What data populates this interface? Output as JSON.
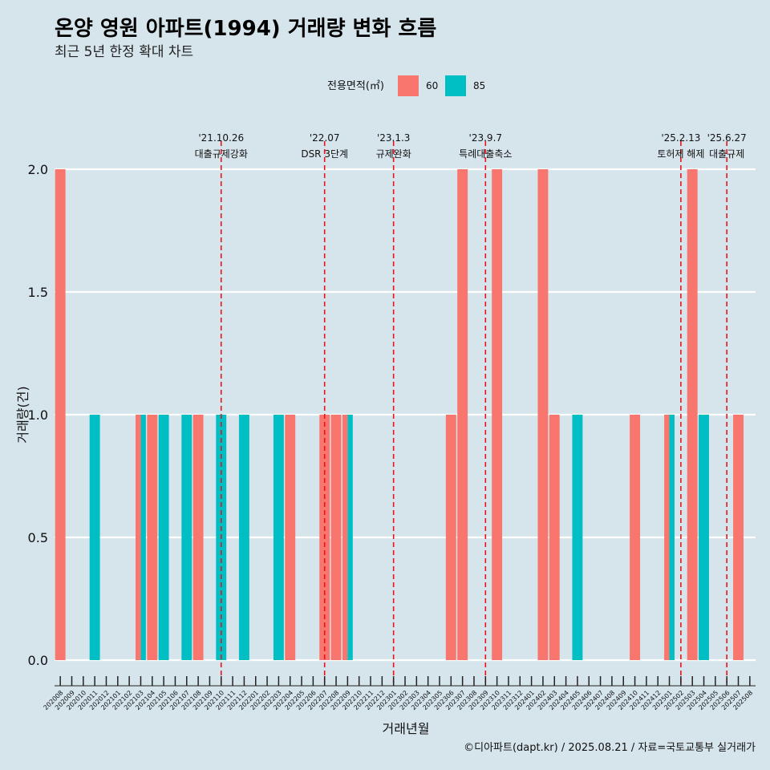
{
  "chart_data": {
    "type": "bar",
    "title": "온양 영원 아파트(1994) 거래량 변화 흐름",
    "subtitle": "최근 5년 한정 확대 차트",
    "xlabel": "거래년월",
    "ylabel": "거래량(건)",
    "ylim": [
      0,
      2.0
    ],
    "yticks": [
      "0.0",
      "0.5",
      "1.0",
      "1.5",
      "2.0"
    ],
    "grid": true,
    "legend": {
      "title": "전용면적(㎡)",
      "position": "top"
    },
    "categories": [
      "202008",
      "202009",
      "202010",
      "202011",
      "202012",
      "202101",
      "202102",
      "202103",
      "202104",
      "202105",
      "202106",
      "202107",
      "202108",
      "202109",
      "202110",
      "202111",
      "202112",
      "202201",
      "202202",
      "202203",
      "202204",
      "202205",
      "202206",
      "202207",
      "202208",
      "202209",
      "202210",
      "202211",
      "202212",
      "202301",
      "202302",
      "202303",
      "202304",
      "202305",
      "202306",
      "202307",
      "202308",
      "202309",
      "202310",
      "202311",
      "202312",
      "202401",
      "202402",
      "202403",
      "202404",
      "202405",
      "202406",
      "202407",
      "202408",
      "202409",
      "202410",
      "202411",
      "202412",
      "202501",
      "202502",
      "202503",
      "202504",
      "202505",
      "202506",
      "202507",
      "202508"
    ],
    "series": [
      {
        "name": "60",
        "color": "#f8766d",
        "values": [
          2,
          0,
          0,
          0,
          0,
          0,
          0,
          1,
          1,
          0,
          0,
          0,
          1,
          0,
          0,
          0,
          0,
          0,
          0,
          0,
          1,
          0,
          0,
          1,
          1,
          1,
          0,
          0,
          0,
          0,
          0,
          0,
          0,
          0,
          1,
          2,
          0,
          0,
          2,
          0,
          0,
          0,
          2,
          1,
          0,
          0,
          0,
          0,
          0,
          0,
          1,
          0,
          0,
          1,
          0,
          2,
          0,
          0,
          0,
          1,
          0
        ]
      },
      {
        "name": "85",
        "color": "#00bfc4",
        "values": [
          0,
          0,
          0,
          1,
          0,
          0,
          0,
          1,
          0,
          1,
          0,
          1,
          0,
          0,
          1,
          0,
          1,
          0,
          0,
          1,
          0,
          0,
          0,
          0,
          0,
          1,
          0,
          0,
          0,
          0,
          0,
          0,
          0,
          0,
          0,
          0,
          0,
          0,
          0,
          0,
          0,
          0,
          0,
          0,
          0,
          1,
          0,
          0,
          0,
          0,
          0,
          0,
          0,
          1,
          0,
          0,
          1,
          0,
          0,
          0,
          0
        ]
      }
    ],
    "events": [
      {
        "date": "'21.10.26",
        "label": "대출규제강화",
        "x_category": "202110"
      },
      {
        "date": "'22.07",
        "label": "DSR 3단계",
        "x_category": "202207"
      },
      {
        "date": "'23.1.3",
        "label": "규제완화",
        "x_category": "202301"
      },
      {
        "date": "'23.9.7",
        "label": "특례대출축소",
        "x_category": "202309"
      },
      {
        "date": "'25.2.13",
        "label": "토허제 해제",
        "x_category": "202502"
      },
      {
        "date": "'25.6.27",
        "label": "대출규제",
        "x_category": "202506"
      }
    ],
    "caption": "©디아파트(dapt.kr) / 2025.08.21 / 자료=국토교통부 실거래가"
  }
}
